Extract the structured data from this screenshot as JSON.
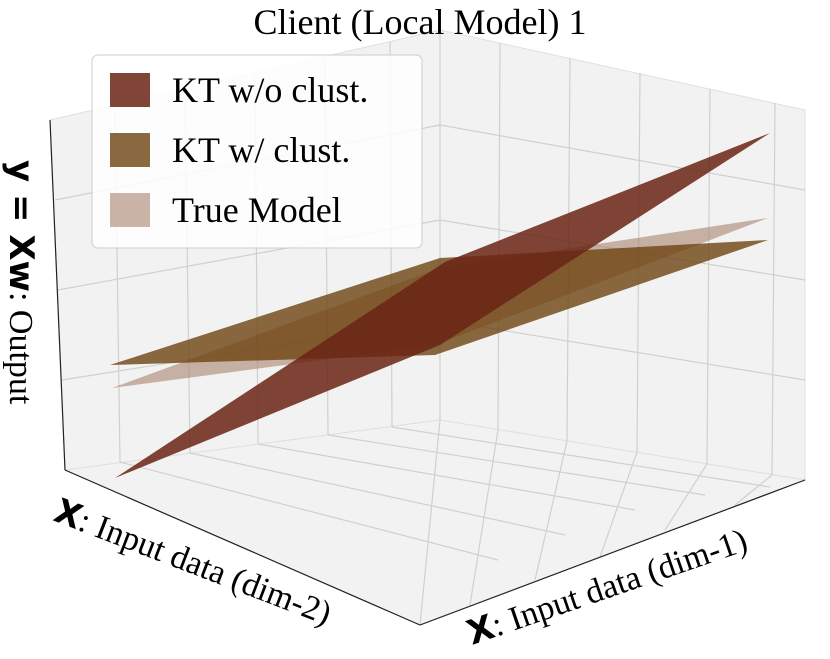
{
  "chart_data": {
    "type": "surface3d",
    "title": "Client (Local Model) 1",
    "xlabel": {
      "symbol": "X",
      "text": ": Input data (dim-1)"
    },
    "ylabel": {
      "symbol": "X",
      "text": ": Input data (dim-2)"
    },
    "zlabel": {
      "symbol": "y = Xw",
      "text": ": Output"
    },
    "series": [
      {
        "name": "KT w/o clust.",
        "color": "#6a2414"
      },
      {
        "name": "KT w/ clust.",
        "color": "#6e4410"
      },
      {
        "name": "True Model",
        "color": "#a98470"
      }
    ],
    "legend": "upper left",
    "grid": true
  }
}
